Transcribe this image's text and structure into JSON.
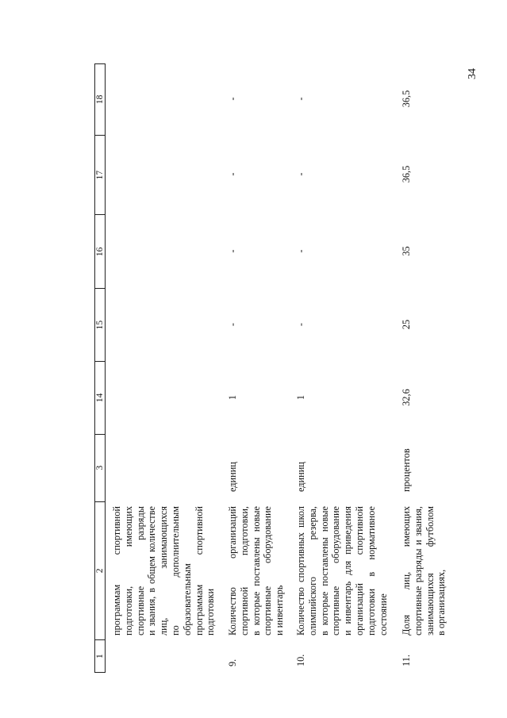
{
  "page_number": "34",
  "header": [
    "1",
    "2",
    "3",
    "14",
    "15",
    "16",
    "17",
    "18"
  ],
  "rows": [
    {
      "num": "",
      "lines": [
        "программам спортивной",
        "подготовки, имеющих",
        "спортивные разряды",
        "и звания, в общем количестве",
        "лиц, занимающихся",
        "по дополнительным",
        "образовательным",
        "программам спортивной",
        "подготовки"
      ],
      "unit": "",
      "values": [
        "",
        "",
        "",
        "",
        ""
      ]
    },
    {
      "num": "9.",
      "lines": [
        "Количество организаций",
        "спортивной подготовки,",
        "в которые поставлены новые",
        "спортивные оборудование",
        "и инвентарь"
      ],
      "unit": "единиц",
      "values": [
        "1",
        "-",
        "-",
        "-",
        "-"
      ]
    },
    {
      "num": "10.",
      "lines": [
        "Количество спортивных школ",
        "олимпийского резерва,",
        "в которые поставлены новые",
        "спортивные оборудование",
        "и инвентарь для приведения",
        "организаций спортивной",
        "подготовки в нормативное",
        "состояние"
      ],
      "unit": "единиц",
      "values": [
        "1",
        "-",
        "-",
        "-",
        "-"
      ]
    },
    {
      "num": "11.",
      "lines": [
        "Доля лиц, имеющих",
        "спортивные разряды и звания,",
        "занимающихся футболом",
        "в организациях,"
      ],
      "unit": "процентов",
      "values": [
        "32,6",
        "25",
        "35",
        "36,5",
        "36,5"
      ]
    }
  ]
}
